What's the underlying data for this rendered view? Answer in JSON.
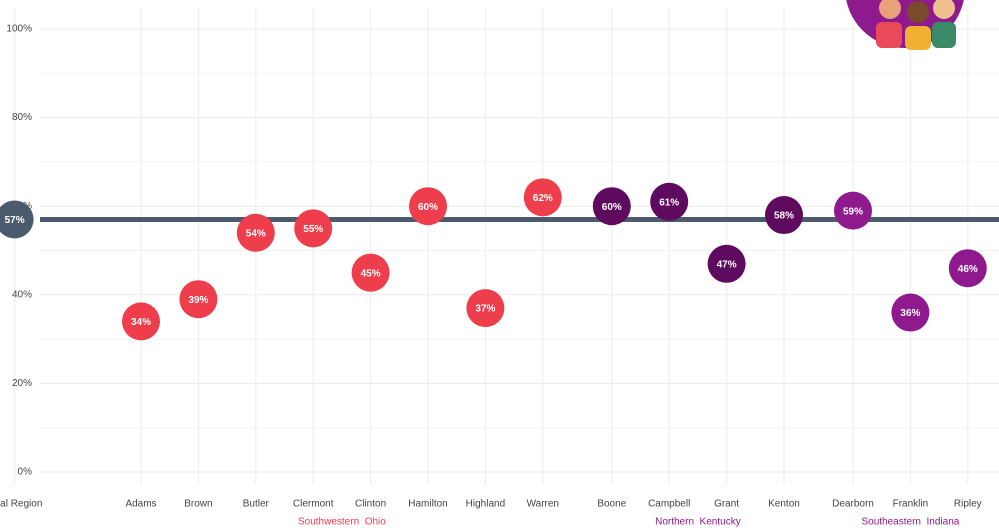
{
  "chart_data": {
    "type": "dot",
    "categories": [
      "Total Region",
      "Adams",
      "Brown",
      "Butler",
      "Clermont",
      "Clinton",
      "Hamilton",
      "Highland",
      "Warren",
      "Boone",
      "Campbell",
      "Grant",
      "Kenton",
      "Dearborn",
      "Franklin",
      "Ripley"
    ],
    "values": [
      57,
      34,
      39,
      54,
      55,
      45,
      60,
      37,
      62,
      60,
      61,
      47,
      58,
      59,
      36,
      46
    ],
    "value_labels": [
      "57%",
      "34%",
      "39%",
      "54%",
      "55%",
      "45%",
      "60%",
      "37%",
      "62%",
      "60%",
      "61%",
      "47%",
      "58%",
      "59%",
      "36%",
      "46%"
    ],
    "colors": [
      "#4b5a6d",
      "#ee3e4b",
      "#ee3e4b",
      "#ee3e4b",
      "#ee3e4b",
      "#ee3e4b",
      "#ee3e4b",
      "#ee3e4b",
      "#ee3e4b",
      "#5e0a5e",
      "#5e0a5e",
      "#5e0a5e",
      "#5e0a5e",
      "#8e1a8e",
      "#8e1a8e",
      "#8e1a8e"
    ],
    "groups": [
      {
        "label": "Southwestern  Ohio",
        "color": "#ee3e4b"
      },
      {
        "label": "Northern  Kentucky",
        "color": "#8e1a8e"
      },
      {
        "label": "Southeastern  Indiana",
        "color": "#8e1a8e"
      }
    ],
    "reference_color": "#4b5a6d",
    "ylim": [
      0,
      100
    ],
    "yticks": [
      {
        "value": 0,
        "label": "0%"
      },
      {
        "value": 20,
        "label": "20%"
      },
      {
        "value": 40,
        "label": "40%"
      },
      {
        "value": 60,
        "label": "60%"
      },
      {
        "value": 80,
        "label": "80%"
      },
      {
        "value": 100,
        "label": "100%"
      }
    ],
    "grid": true
  }
}
